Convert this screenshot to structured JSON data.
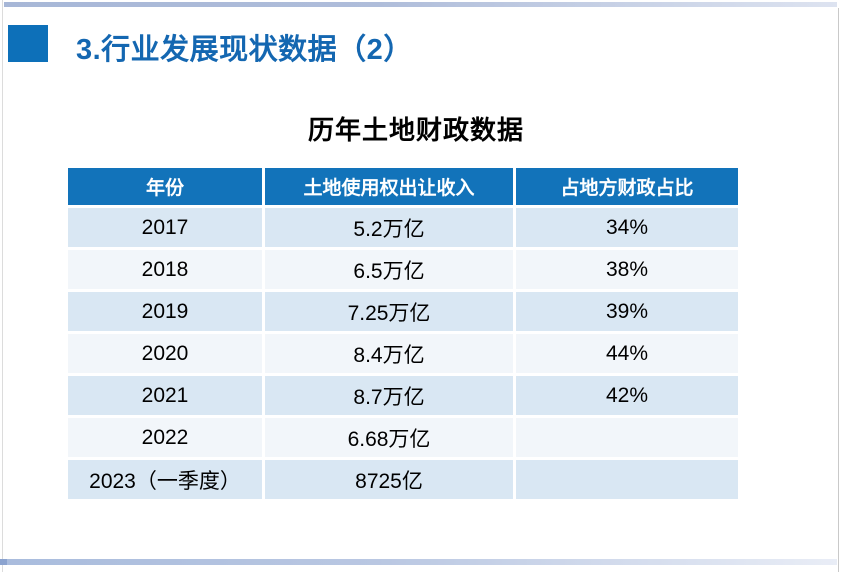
{
  "slide": {
    "title": "3.行业发展现状数据（2）",
    "table_title": "历年土地财政数据"
  },
  "table": {
    "headers": [
      "年份",
      "土地使用权出让收入",
      "占地方财政占比"
    ],
    "rows": [
      [
        "2017",
        "5.2万亿",
        "34%"
      ],
      [
        "2018",
        "6.5万亿",
        "38%"
      ],
      [
        "2019",
        "7.25万亿",
        "39%"
      ],
      [
        "2020",
        "8.4万亿",
        "44%"
      ],
      [
        "2021",
        "8.7万亿",
        "42%"
      ],
      [
        "2022",
        "6.68万亿",
        ""
      ],
      [
        "2023（一季度）",
        "8725亿",
        ""
      ]
    ]
  },
  "colors": {
    "accent_blue": "#0d70b9",
    "title_text_blue": "#1467b1",
    "table_header_bg": "#1273ba",
    "table_header_text": "#ffffff",
    "row_light_blue": "#d9e7f3",
    "row_near_white": "#f2f6fa",
    "decor_bar_blue": "#a9bcdd"
  }
}
